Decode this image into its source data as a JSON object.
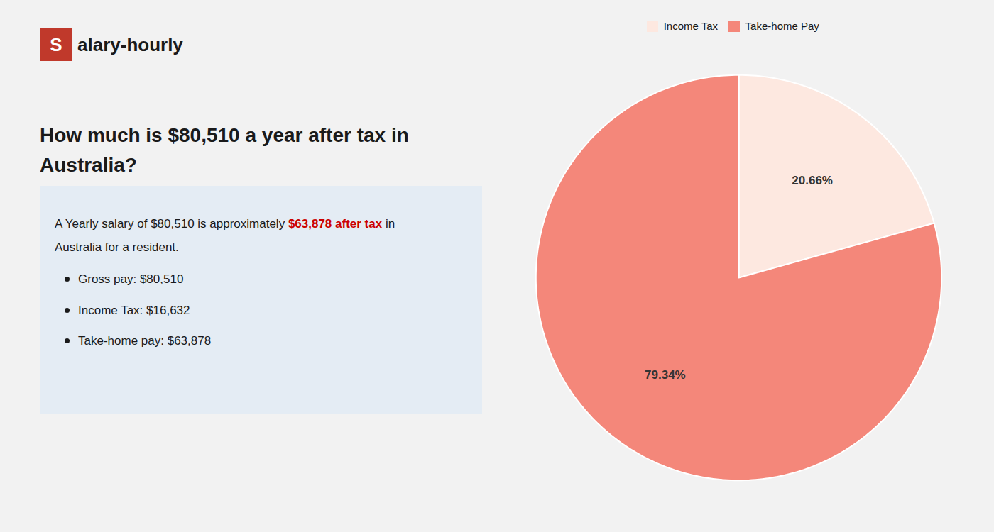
{
  "chart_data": {
    "type": "pie",
    "title": "How much is $80,510 a year after tax in\nAustralia?",
    "categories": [
      "Income Tax",
      "Take-home Pay"
    ],
    "values": [
      20.66,
      79.34
    ],
    "value_labels": [
      "20.66%",
      "79.34%"
    ],
    "colors": [
      "#fde8e0",
      "#f4877a"
    ],
    "data_labels": true,
    "legend": "top",
    "annotations": [
      [
        {
          "text": "S",
          "color": "#c0392b"
        },
        {
          "text": "alary-hourly"
        }
      ],
      [
        {
          "text": "A Yearly salary of $80,510 is approximately "
        },
        {
          "text": "$63,878 after tax",
          "color": "#cc0000"
        },
        {
          "text": " in"
        }
      ],
      [
        {
          "text": "Australia for a resident."
        }
      ],
      [
        {
          "text": "Gross pay: $80,510"
        }
      ],
      [
        {
          "text": "Income Tax: $16,632"
        }
      ],
      [
        {
          "text": "Take-home pay: $63,878"
        }
      ]
    ]
  }
}
